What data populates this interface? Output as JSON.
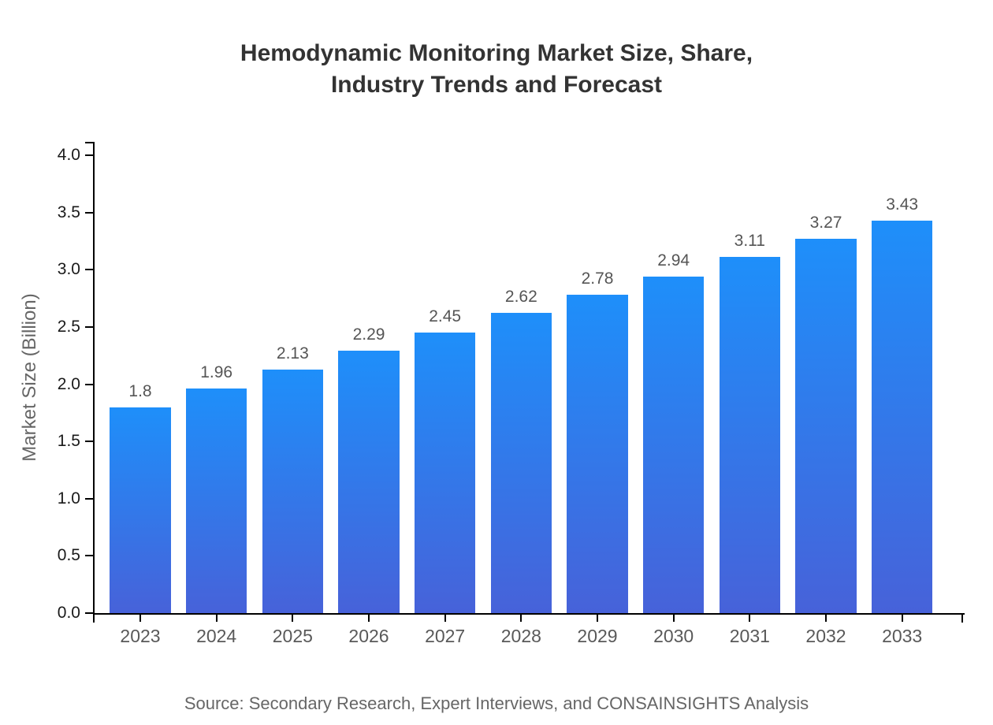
{
  "source_note": "Source: Secondary Research, Expert Interviews, and CONSAINSIGHTS Analysis",
  "chart_data": {
    "type": "bar",
    "title": "Hemodynamic Monitoring Market Size, Share,\nIndustry Trends and Forecast",
    "xlabel": "",
    "ylabel": "Market Size (Billion)",
    "categories": [
      "2023",
      "2024",
      "2025",
      "2026",
      "2027",
      "2028",
      "2029",
      "2030",
      "2031",
      "2032",
      "2033"
    ],
    "values": [
      1.8,
      1.96,
      2.13,
      2.29,
      2.45,
      2.62,
      2.78,
      2.94,
      3.11,
      3.27,
      3.43
    ],
    "value_labels": [
      "1.8",
      "1.96",
      "2.13",
      "2.29",
      "2.45",
      "2.62",
      "2.78",
      "2.94",
      "3.11",
      "3.27",
      "3.43"
    ],
    "ylim": [
      0.0,
      4.0
    ],
    "ytick_labels": [
      "0.0",
      "0.5",
      "1.0",
      "1.5",
      "2.0",
      "2.5",
      "3.0",
      "3.5",
      "4.0"
    ],
    "ytick_values": [
      0.0,
      0.5,
      1.0,
      1.5,
      2.0,
      2.5,
      3.0,
      3.5,
      4.0
    ],
    "grid": false,
    "legend": "none",
    "colors": {
      "bar_gradient_top": "#1E8FFA",
      "bar_gradient_bottom": "#4762D9",
      "axis": "#000000",
      "title_text": "#333333",
      "ytick_label": "#1a1a1a",
      "xtick_label": "#595959",
      "value_label": "#555555",
      "muted_text": "#666666",
      "background": "#FFFFFF"
    }
  }
}
